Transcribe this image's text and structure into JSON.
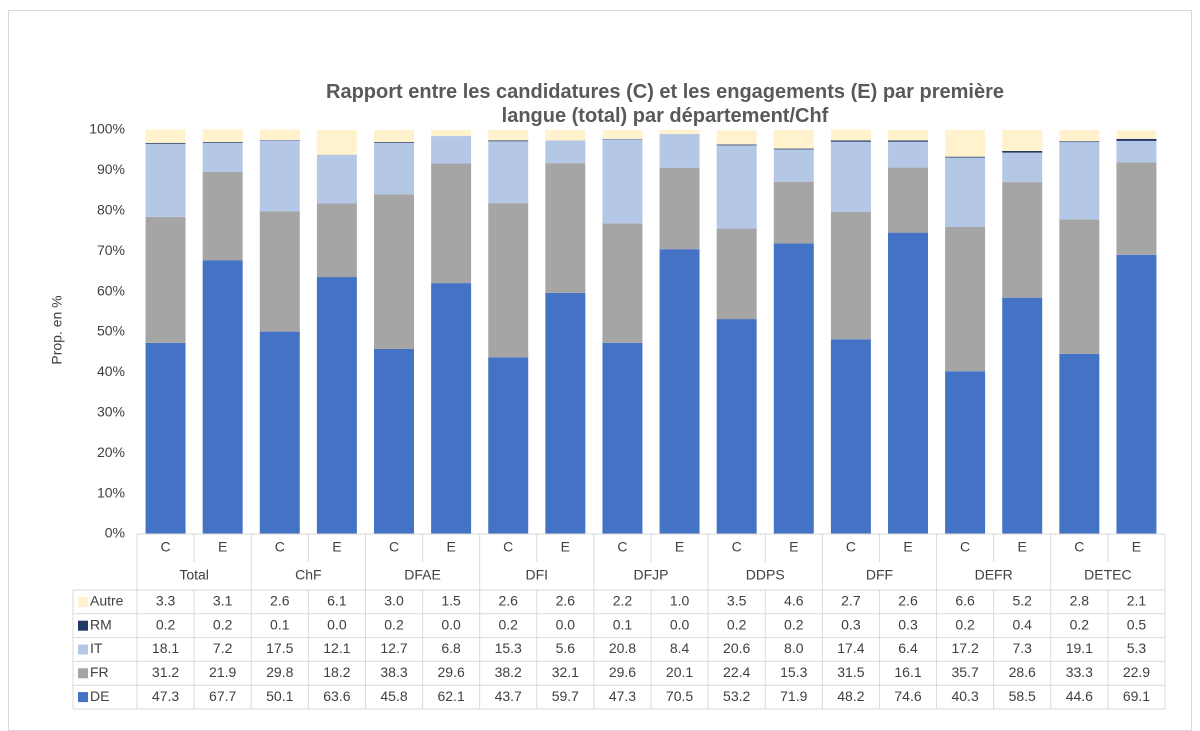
{
  "chart_data": {
    "type": "stacked_bar",
    "title": "Rapport entre les candidatures (C) et les engagements (E) par première langue (total) par département/Chf",
    "y_label": "Prop. en %",
    "categories": [
      "C",
      "E",
      "C",
      "E",
      "C",
      "E",
      "C",
      "E",
      "C",
      "E",
      "C",
      "E",
      "C",
      "E",
      "C",
      "E",
      "C",
      "E"
    ],
    "groups": [
      "Total",
      "ChF",
      "DFAE",
      "DFI",
      "DFJP",
      "DDPS",
      "DFF",
      "DEFR",
      "DETEC"
    ],
    "ylim": [
      0,
      100
    ],
    "yticks": [
      {
        "value": 0,
        "label": "0%"
      },
      {
        "value": 10,
        "label": "10%"
      },
      {
        "value": 20,
        "label": "20%"
      },
      {
        "value": 30,
        "label": "30%"
      },
      {
        "value": 40,
        "label": "40%"
      },
      {
        "value": 50,
        "label": "50%"
      },
      {
        "value": 60,
        "label": "60%"
      },
      {
        "value": 70,
        "label": "70%"
      },
      {
        "value": 80,
        "label": "80%"
      },
      {
        "value": 90,
        "label": "90%"
      },
      {
        "value": 100,
        "label": "100%"
      }
    ],
    "grid": false,
    "series": [
      {
        "name": "DE",
        "color": "#4472c4",
        "values": [
          47.3,
          67.7,
          50.1,
          63.6,
          45.8,
          62.1,
          43.7,
          59.7,
          47.3,
          70.5,
          53.2,
          71.9,
          48.2,
          74.6,
          40.3,
          58.5,
          44.6,
          69.1
        ],
        "value_labels": [
          "47.3",
          "67.7",
          "50.1",
          "63.6",
          "45.8",
          "62.1",
          "43.7",
          "59.7",
          "47.3",
          "70.5",
          "53.2",
          "71.9",
          "48.2",
          "74.6",
          "40.3",
          "58.5",
          "44.6",
          "69.1"
        ]
      },
      {
        "name": "FR",
        "color": "#a5a5a5",
        "values": [
          31.2,
          21.9,
          29.8,
          18.2,
          38.3,
          29.6,
          38.2,
          32.1,
          29.6,
          20.1,
          22.4,
          15.3,
          31.5,
          16.1,
          35.7,
          28.6,
          33.3,
          22.9
        ],
        "value_labels": [
          "31.2",
          "21.9",
          "29.8",
          "18.2",
          "38.3",
          "29.6",
          "38.2",
          "32.1",
          "29.6",
          "20.1",
          "22.4",
          "15.3",
          "31.5",
          "16.1",
          "35.7",
          "28.6",
          "33.3",
          "22.9"
        ]
      },
      {
        "name": "IT",
        "color": "#b4c7e7",
        "values": [
          18.1,
          7.2,
          17.5,
          12.1,
          12.7,
          6.8,
          15.3,
          5.6,
          20.8,
          8.4,
          20.6,
          8,
          17.4,
          6.4,
          17.2,
          7.3,
          19.1,
          5.3
        ],
        "value_labels": [
          "18.1",
          "7.2",
          "17.5",
          "12.1",
          "12.7",
          "6.8",
          "15.3",
          "5.6",
          "20.8",
          "8.4",
          "20.6",
          "8.0",
          "17.4",
          "6.4",
          "17.2",
          "7.3",
          "19.1",
          "5.3"
        ]
      },
      {
        "name": "RM",
        "color": "#203864",
        "values": [
          0.2,
          0.2,
          0.1,
          0,
          0.2,
          0,
          0.2,
          0,
          0.1,
          0,
          0.2,
          0.2,
          0.3,
          0.3,
          0.2,
          0.4,
          0.2,
          0.5
        ],
        "value_labels": [
          "0.2",
          "0.2",
          "0.1",
          "0.0",
          "0.2",
          "0.0",
          "0.2",
          "0.0",
          "0.1",
          "0.0",
          "0.2",
          "0.2",
          "0.3",
          "0.3",
          "0.2",
          "0.4",
          "0.2",
          "0.5"
        ]
      },
      {
        "name": "Autre",
        "color": "#fff2cc",
        "values": [
          3.3,
          3.1,
          2.6,
          6.1,
          3,
          1.5,
          2.6,
          2.6,
          2.2,
          1,
          3.5,
          4.6,
          2.7,
          2.6,
          6.6,
          5.2,
          2.8,
          2.1
        ],
        "value_labels": [
          "3.3",
          "3.1",
          "2.6",
          "6.1",
          "3.0",
          "1.5",
          "2.6",
          "2.6",
          "2.2",
          "1.0",
          "3.5",
          "4.6",
          "2.7",
          "2.6",
          "6.6",
          "5.2",
          "2.8",
          "2.1"
        ]
      }
    ]
  }
}
